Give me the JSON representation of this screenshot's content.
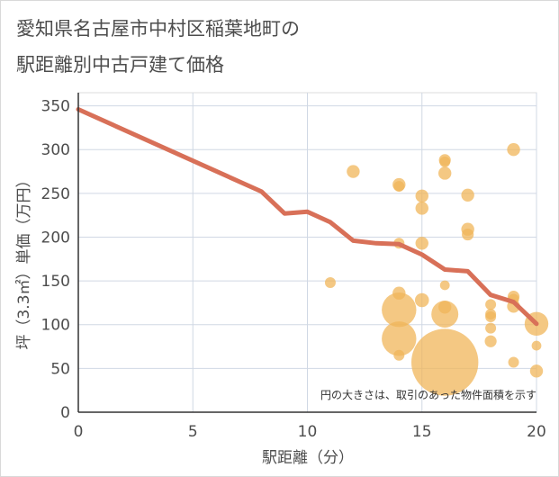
{
  "chart_data": {
    "type": "scatter",
    "title_line1": "愛知県名古屋市中村区稲葉地町の",
    "title_line2": "駅距離別中古戸建て価格",
    "xlabel": "駅距離（分）",
    "ylabel": "坪（3.3㎡）単価（万円）",
    "xlim": [
      0,
      20
    ],
    "ylim": [
      0,
      365
    ],
    "x_ticks": [
      0,
      5,
      10,
      15,
      20
    ],
    "y_ticks": [
      0,
      50,
      100,
      150,
      200,
      250,
      300,
      350
    ],
    "grid": true,
    "note": "円の大きさは、取引のあった物件面積を示す",
    "bubble_color": "#f0b65a",
    "line_color": "#d87058",
    "points": [
      {
        "x": 11,
        "y": 148,
        "size": 1
      },
      {
        "x": 12,
        "y": 275,
        "size": 1.2
      },
      {
        "x": 14,
        "y": 260,
        "size": 1.2
      },
      {
        "x": 14,
        "y": 258,
        "size": 1
      },
      {
        "x": 14,
        "y": 193,
        "size": 1
      },
      {
        "x": 14,
        "y": 136,
        "size": 1.2
      },
      {
        "x": 14,
        "y": 117,
        "size": 3.2
      },
      {
        "x": 14,
        "y": 84,
        "size": 3.2
      },
      {
        "x": 14,
        "y": 65,
        "size": 1
      },
      {
        "x": 15,
        "y": 247,
        "size": 1.2
      },
      {
        "x": 15,
        "y": 233,
        "size": 1.2
      },
      {
        "x": 15,
        "y": 193,
        "size": 1.2
      },
      {
        "x": 15,
        "y": 128,
        "size": 1.3
      },
      {
        "x": 16,
        "y": 288,
        "size": 1.1
      },
      {
        "x": 16,
        "y": 286,
        "size": 1
      },
      {
        "x": 16,
        "y": 273,
        "size": 1.2
      },
      {
        "x": 16,
        "y": 145,
        "size": 0.9
      },
      {
        "x": 16,
        "y": 120,
        "size": 1.2
      },
      {
        "x": 16,
        "y": 112,
        "size": 2.5
      },
      {
        "x": 16,
        "y": 57,
        "size": 6.2
      },
      {
        "x": 17,
        "y": 248,
        "size": 1.2
      },
      {
        "x": 17,
        "y": 209,
        "size": 1.2
      },
      {
        "x": 17,
        "y": 203,
        "size": 1.1
      },
      {
        "x": 18,
        "y": 123,
        "size": 1
      },
      {
        "x": 18,
        "y": 112,
        "size": 1
      },
      {
        "x": 18,
        "y": 109,
        "size": 1
      },
      {
        "x": 18,
        "y": 96,
        "size": 1
      },
      {
        "x": 18,
        "y": 81,
        "size": 1.1
      },
      {
        "x": 19,
        "y": 300,
        "size": 1.2
      },
      {
        "x": 19,
        "y": 132,
        "size": 1.1
      },
      {
        "x": 19,
        "y": 129,
        "size": 1
      },
      {
        "x": 19,
        "y": 121,
        "size": 1.2
      },
      {
        "x": 19,
        "y": 57,
        "size": 1
      },
      {
        "x": 20,
        "y": 101,
        "size": 2.2
      },
      {
        "x": 20,
        "y": 76,
        "size": 0.9
      },
      {
        "x": 20,
        "y": 47,
        "size": 1.2
      }
    ],
    "series": [
      {
        "name": "average",
        "x": [
          0,
          8,
          9,
          10,
          11,
          12,
          13,
          14,
          15,
          16,
          17,
          18,
          19,
          20
        ],
        "y": [
          346,
          252,
          227,
          229,
          217,
          196,
          193,
          192,
          180,
          163,
          161,
          134,
          126,
          101
        ]
      }
    ]
  }
}
